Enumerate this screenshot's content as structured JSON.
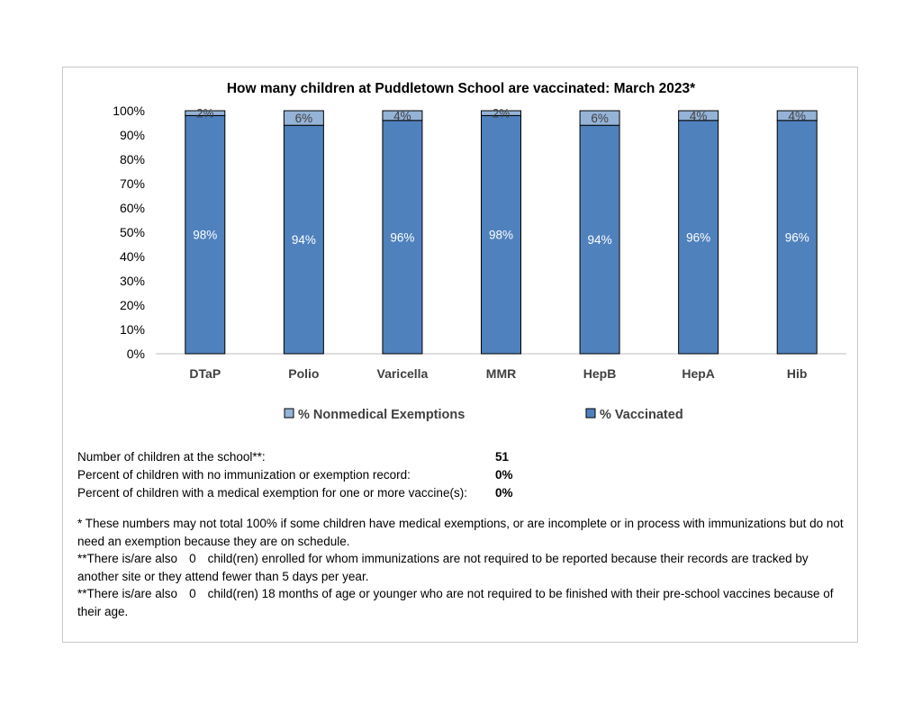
{
  "chart_data": {
    "type": "bar",
    "stacked": true,
    "title": "How many children at Puddletown School are vaccinated: March 2023*",
    "categories": [
      "DTaP",
      "Polio",
      "Varicella",
      "MMR",
      "HepB",
      "HepA",
      "Hib"
    ],
    "series": [
      {
        "name": "% Vaccinated",
        "values": [
          98,
          94,
          96,
          98,
          94,
          96,
          96
        ],
        "color": "#4f81bd",
        "labels": [
          "98%",
          "94%",
          "96%",
          "98%",
          "94%",
          "96%",
          "96%"
        ]
      },
      {
        "name": "% Nonmedical Exemptions",
        "values": [
          2,
          6,
          4,
          2,
          6,
          4,
          4
        ],
        "color": "#95b3d7",
        "labels": [
          "2%",
          "6%",
          "4%",
          "2%",
          "6%",
          "4%",
          "4%"
        ]
      }
    ],
    "ylim": [
      0,
      100
    ],
    "yticks": [
      "0%",
      "10%",
      "20%",
      "30%",
      "40%",
      "50%",
      "60%",
      "70%",
      "80%",
      "90%",
      "100%"
    ],
    "legend": [
      "% Nonmedical Exemptions",
      "% Vaccinated"
    ],
    "legend_position": "bottom",
    "grid": false
  },
  "stats": [
    {
      "label": "Number of children at the school**:",
      "value": "51"
    },
    {
      "label": "Percent of children  with no immunization or exemption record:",
      "value": "0%"
    },
    {
      "label": "Percent of children  with a medical exemption for one  or more vaccine(s):",
      "value": "0%"
    }
  ],
  "notes": {
    "note1": "* These numbers may not total 100% if some children have medical exemptions, or are incomplete or in process with immunizations but do not need an exemption because they are on schedule.",
    "note2_prefix": "**There is/are also",
    "note2_count": "0",
    "note2_suffix": "child(ren) enrolled for whom immunizations are not required to be reported because their records are tracked by another site or they attend fewer than 5 days per year.",
    "note3_prefix": "**There is/are also",
    "note3_count": "0",
    "note3_suffix": "child(ren) 18 months of age or younger who are not required to be finished with their pre-school vaccines because of their age."
  }
}
